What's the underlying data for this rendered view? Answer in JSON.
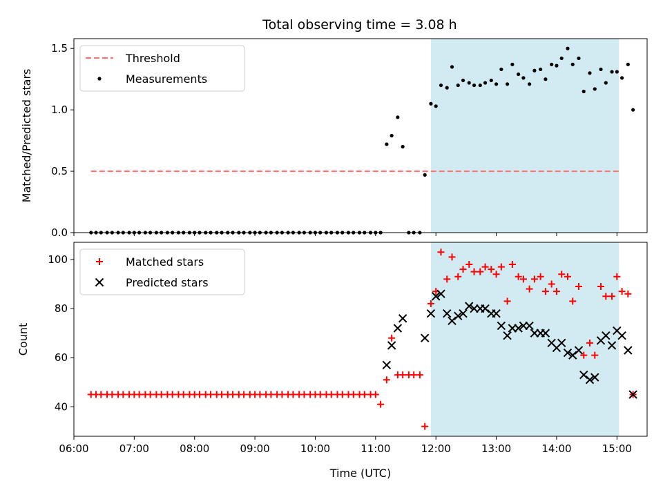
{
  "title": "Total observing time = 3.08 h",
  "colors": {
    "shade": "#add8e6",
    "threshold": "#ff7070",
    "measurement": "#000000",
    "matched": "#ff0000",
    "predicted": "#000000"
  },
  "chart_data": [
    {
      "type": "scatter",
      "ylabel": "Matched/Predicted stars",
      "xlim": [
        "06:00",
        "15:30"
      ],
      "ylim": [
        0,
        1.58
      ],
      "yticks": [
        0.0,
        0.5,
        1.0,
        1.5
      ],
      "ytick_labels": [
        "0.0",
        "0.5",
        "1.0",
        "1.5"
      ],
      "legend_position": "upper-left",
      "shaded_region": {
        "start": "11:55",
        "end": "15:02"
      },
      "threshold": {
        "name": "Threshold",
        "value": 0.5,
        "x_range": [
          "06:17",
          "15:02"
        ],
        "style": "dashed"
      },
      "series": [
        {
          "name": "Measurements",
          "marker": "dot",
          "points": [
            [
              "06:17",
              0
            ],
            [
              "06:22",
              0
            ],
            [
              "06:27",
              0
            ],
            [
              "06:33",
              0
            ],
            [
              "06:38",
              0
            ],
            [
              "06:44",
              0
            ],
            [
              "06:49",
              0
            ],
            [
              "06:55",
              0
            ],
            [
              "07:00",
              0
            ],
            [
              "07:05",
              0
            ],
            [
              "07:11",
              0
            ],
            [
              "07:16",
              0
            ],
            [
              "07:22",
              0
            ],
            [
              "07:27",
              0
            ],
            [
              "07:33",
              0
            ],
            [
              "07:38",
              0
            ],
            [
              "07:44",
              0
            ],
            [
              "07:49",
              0
            ],
            [
              "07:55",
              0
            ],
            [
              "08:00",
              0
            ],
            [
              "08:05",
              0
            ],
            [
              "08:11",
              0
            ],
            [
              "08:16",
              0
            ],
            [
              "08:22",
              0
            ],
            [
              "08:27",
              0
            ],
            [
              "08:33",
              0
            ],
            [
              "08:38",
              0
            ],
            [
              "08:44",
              0
            ],
            [
              "08:49",
              0
            ],
            [
              "08:55",
              0
            ],
            [
              "09:00",
              0
            ],
            [
              "09:05",
              0
            ],
            [
              "09:11",
              0
            ],
            [
              "09:16",
              0
            ],
            [
              "09:22",
              0
            ],
            [
              "09:27",
              0
            ],
            [
              "09:33",
              0
            ],
            [
              "09:38",
              0
            ],
            [
              "09:44",
              0
            ],
            [
              "09:49",
              0
            ],
            [
              "09:55",
              0
            ],
            [
              "10:00",
              0
            ],
            [
              "10:05",
              0
            ],
            [
              "10:11",
              0
            ],
            [
              "10:16",
              0
            ],
            [
              "10:22",
              0
            ],
            [
              "10:27",
              0
            ],
            [
              "10:33",
              0
            ],
            [
              "10:38",
              0
            ],
            [
              "10:44",
              0
            ],
            [
              "10:49",
              0
            ],
            [
              "10:55",
              0
            ],
            [
              "11:00",
              0
            ],
            [
              "11:05",
              0
            ],
            [
              "11:11",
              0.72
            ],
            [
              "11:16",
              0.79
            ],
            [
              "11:22",
              0.94
            ],
            [
              "11:27",
              0.7
            ],
            [
              "11:33",
              0
            ],
            [
              "11:38",
              0
            ],
            [
              "11:44",
              0
            ],
            [
              "11:49",
              0.47
            ],
            [
              "11:55",
              1.05
            ],
            [
              "12:00",
              1.03
            ],
            [
              "12:05",
              1.2
            ],
            [
              "12:11",
              1.18
            ],
            [
              "12:16",
              1.35
            ],
            [
              "12:22",
              1.2
            ],
            [
              "12:27",
              1.24
            ],
            [
              "12:33",
              1.22
            ],
            [
              "12:38",
              1.2
            ],
            [
              "12:44",
              1.2
            ],
            [
              "12:49",
              1.22
            ],
            [
              "12:55",
              1.24
            ],
            [
              "13:00",
              1.21
            ],
            [
              "13:05",
              1.33
            ],
            [
              "13:11",
              1.21
            ],
            [
              "13:16",
              1.37
            ],
            [
              "13:22",
              1.29
            ],
            [
              "13:27",
              1.26
            ],
            [
              "13:33",
              1.21
            ],
            [
              "13:38",
              1.32
            ],
            [
              "13:44",
              1.33
            ],
            [
              "13:49",
              1.25
            ],
            [
              "13:55",
              1.37
            ],
            [
              "14:00",
              1.36
            ],
            [
              "14:05",
              1.42
            ],
            [
              "14:11",
              1.5
            ],
            [
              "14:16",
              1.37
            ],
            [
              "14:22",
              1.42
            ],
            [
              "14:27",
              1.15
            ],
            [
              "14:33",
              1.3
            ],
            [
              "14:38",
              1.17
            ],
            [
              "14:44",
              1.33
            ],
            [
              "14:49",
              1.22
            ],
            [
              "14:55",
              1.31
            ],
            [
              "15:00",
              1.31
            ],
            [
              "15:05",
              1.26
            ],
            [
              "15:11",
              1.37
            ],
            [
              "15:16",
              1.0
            ]
          ]
        }
      ]
    },
    {
      "type": "scatter",
      "xlabel": "Time (UTC)",
      "ylabel": "Count",
      "xlim": [
        "06:00",
        "15:30"
      ],
      "ylim": [
        28,
        107
      ],
      "yticks": [
        40,
        60,
        80,
        100
      ],
      "ytick_labels": [
        "40",
        "60",
        "80",
        "100"
      ],
      "xticks": [
        "06:00",
        "07:00",
        "08:00",
        "09:00",
        "10:00",
        "11:00",
        "12:00",
        "13:00",
        "14:00",
        "15:00"
      ],
      "legend_position": "upper-left",
      "shaded_region": {
        "start": "11:55",
        "end": "15:02"
      },
      "series": [
        {
          "name": "Matched stars",
          "marker": "plus",
          "points": [
            [
              "06:17",
              45
            ],
            [
              "06:22",
              45
            ],
            [
              "06:27",
              45
            ],
            [
              "06:33",
              45
            ],
            [
              "06:38",
              45
            ],
            [
              "06:44",
              45
            ],
            [
              "06:49",
              45
            ],
            [
              "06:55",
              45
            ],
            [
              "07:00",
              45
            ],
            [
              "07:05",
              45
            ],
            [
              "07:11",
              45
            ],
            [
              "07:16",
              45
            ],
            [
              "07:22",
              45
            ],
            [
              "07:27",
              45
            ],
            [
              "07:33",
              45
            ],
            [
              "07:38",
              45
            ],
            [
              "07:44",
              45
            ],
            [
              "07:49",
              45
            ],
            [
              "07:55",
              45
            ],
            [
              "08:00",
              45
            ],
            [
              "08:05",
              45
            ],
            [
              "08:11",
              45
            ],
            [
              "08:16",
              45
            ],
            [
              "08:22",
              45
            ],
            [
              "08:27",
              45
            ],
            [
              "08:33",
              45
            ],
            [
              "08:38",
              45
            ],
            [
              "08:44",
              45
            ],
            [
              "08:49",
              45
            ],
            [
              "08:55",
              45
            ],
            [
              "09:00",
              45
            ],
            [
              "09:05",
              45
            ],
            [
              "09:11",
              45
            ],
            [
              "09:16",
              45
            ],
            [
              "09:22",
              45
            ],
            [
              "09:27",
              45
            ],
            [
              "09:33",
              45
            ],
            [
              "09:38",
              45
            ],
            [
              "09:44",
              45
            ],
            [
              "09:49",
              45
            ],
            [
              "09:55",
              45
            ],
            [
              "10:00",
              45
            ],
            [
              "10:05",
              45
            ],
            [
              "10:11",
              45
            ],
            [
              "10:16",
              45
            ],
            [
              "10:22",
              45
            ],
            [
              "10:27",
              45
            ],
            [
              "10:33",
              45
            ],
            [
              "10:38",
              45
            ],
            [
              "10:44",
              45
            ],
            [
              "10:49",
              45
            ],
            [
              "10:55",
              45
            ],
            [
              "11:00",
              45
            ],
            [
              "11:05",
              41
            ],
            [
              "11:11",
              51
            ],
            [
              "11:16",
              68
            ],
            [
              "11:22",
              53
            ],
            [
              "11:27",
              53
            ],
            [
              "11:33",
              53
            ],
            [
              "11:38",
              53
            ],
            [
              "11:44",
              53
            ],
            [
              "11:49",
              32
            ],
            [
              "11:55",
              82
            ],
            [
              "12:00",
              87
            ],
            [
              "12:05",
              103
            ],
            [
              "12:11",
              92
            ],
            [
              "12:16",
              101
            ],
            [
              "12:22",
              93
            ],
            [
              "12:27",
              96
            ],
            [
              "12:33",
              98
            ],
            [
              "12:38",
              95
            ],
            [
              "12:44",
              95
            ],
            [
              "12:49",
              97
            ],
            [
              "12:55",
              96
            ],
            [
              "13:00",
              94
            ],
            [
              "13:05",
              97
            ],
            [
              "13:11",
              83
            ],
            [
              "13:16",
              98
            ],
            [
              "13:22",
              93
            ],
            [
              "13:27",
              92
            ],
            [
              "13:33",
              88
            ],
            [
              "13:38",
              92
            ],
            [
              "13:44",
              93
            ],
            [
              "13:49",
              87
            ],
            [
              "13:55",
              90
            ],
            [
              "14:00",
              87
            ],
            [
              "14:05",
              94
            ],
            [
              "14:11",
              93
            ],
            [
              "14:16",
              83
            ],
            [
              "14:22",
              89
            ],
            [
              "14:27",
              61
            ],
            [
              "14:33",
              66
            ],
            [
              "14:38",
              61
            ],
            [
              "14:44",
              89
            ],
            [
              "14:49",
              85
            ],
            [
              "14:55",
              85
            ],
            [
              "15:00",
              93
            ],
            [
              "15:05",
              87
            ],
            [
              "15:11",
              86
            ],
            [
              "15:16",
              45
            ]
          ]
        },
        {
          "name": "Predicted stars",
          "marker": "x",
          "points": [
            [
              "11:11",
              57
            ],
            [
              "11:16",
              65
            ],
            [
              "11:22",
              72
            ],
            [
              "11:27",
              76
            ],
            [
              "11:49",
              68
            ],
            [
              "11:55",
              78
            ],
            [
              "12:00",
              85
            ],
            [
              "12:05",
              86
            ],
            [
              "12:11",
              78
            ],
            [
              "12:16",
              75
            ],
            [
              "12:22",
              77
            ],
            [
              "12:27",
              78
            ],
            [
              "12:33",
              81
            ],
            [
              "12:38",
              80
            ],
            [
              "12:44",
              80
            ],
            [
              "12:49",
              80
            ],
            [
              "12:55",
              78
            ],
            [
              "13:00",
              78
            ],
            [
              "13:05",
              73
            ],
            [
              "13:11",
              69
            ],
            [
              "13:16",
              72
            ],
            [
              "13:22",
              72
            ],
            [
              "13:27",
              73
            ],
            [
              "13:33",
              73
            ],
            [
              "13:38",
              70
            ],
            [
              "13:44",
              70
            ],
            [
              "13:49",
              70
            ],
            [
              "13:55",
              66
            ],
            [
              "14:00",
              64
            ],
            [
              "14:05",
              66
            ],
            [
              "14:11",
              62
            ],
            [
              "14:16",
              61
            ],
            [
              "14:22",
              63
            ],
            [
              "14:27",
              53
            ],
            [
              "14:33",
              51
            ],
            [
              "14:38",
              52
            ],
            [
              "14:44",
              67
            ],
            [
              "14:49",
              69
            ],
            [
              "14:55",
              65
            ],
            [
              "15:00",
              71
            ],
            [
              "15:05",
              69
            ],
            [
              "15:11",
              63
            ],
            [
              "15:16",
              45
            ]
          ]
        }
      ]
    }
  ]
}
